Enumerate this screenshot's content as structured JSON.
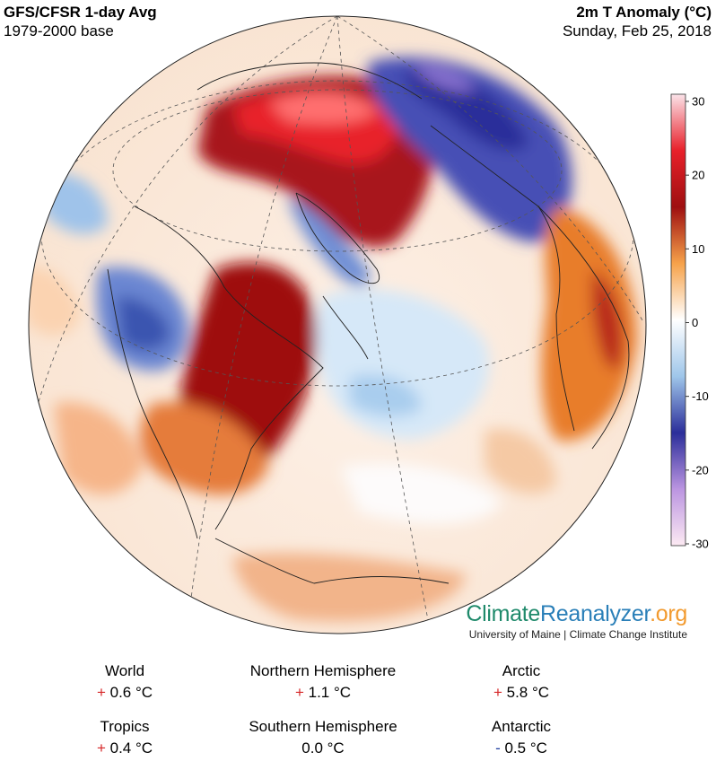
{
  "header": {
    "title_left": "GFS/CFSR 1-day Avg",
    "subtitle_left": "1979-2000 base",
    "title_right": "2m T Anomaly (°C)",
    "subtitle_right": "Sunday, Feb 25, 2018"
  },
  "colorbar": {
    "ticks": [
      "30",
      "20",
      "10",
      "0",
      "-10",
      "-20",
      "-30"
    ],
    "colors": [
      "#fbe3e9",
      "#e8202a",
      "#9e0f10",
      "#f6a24a",
      "#ffffff",
      "#9fc6ea",
      "#2b2e9a",
      "#bb95e1",
      "#fdeaf3"
    ]
  },
  "branding": {
    "name_part1": "Climate",
    "name_part2": "Reanalyzer",
    "name_part3": ".org",
    "subtitle": "University of Maine | Climate Change Institute"
  },
  "stats": [
    {
      "label": "World",
      "sign": "+",
      "value": "0.6 °C"
    },
    {
      "label": "Northern Hemisphere",
      "sign": "+",
      "value": "1.1 °C"
    },
    {
      "label": "Arctic",
      "sign": "+",
      "value": "5.8 °C"
    },
    {
      "label": "Tropics",
      "sign": "+",
      "value": "0.4 °C"
    },
    {
      "label": "Southern Hemisphere",
      "sign": "",
      "value": "0.0 °C"
    },
    {
      "label": "Antarctic",
      "sign": "-",
      "value": "0.5 °C"
    }
  ]
}
